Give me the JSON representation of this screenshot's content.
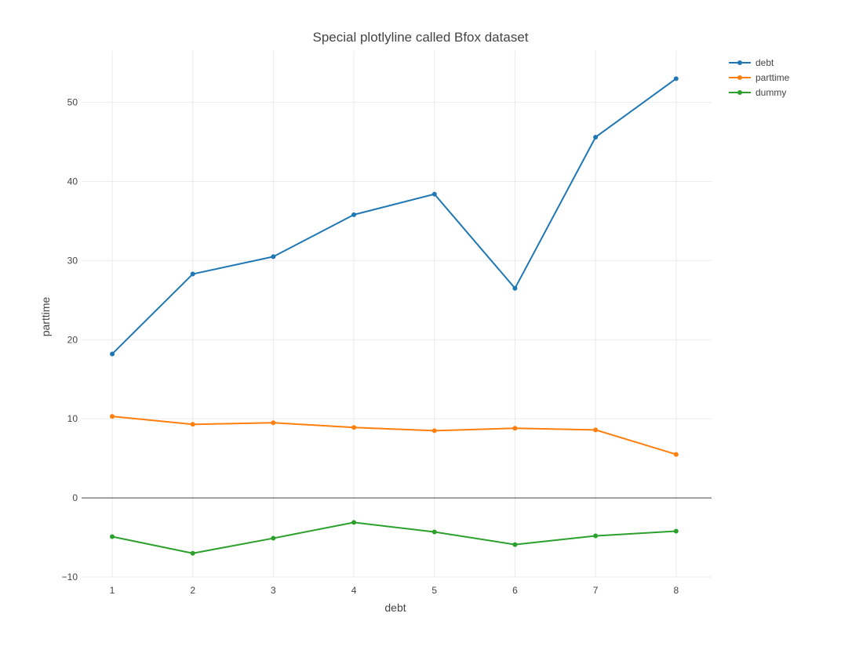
{
  "chart_data": {
    "type": "line",
    "title": "Special plotlyline called Bfox dataset",
    "xlabel": "debt",
    "ylabel": "parttime",
    "x": [
      1,
      2,
      3,
      4,
      5,
      6,
      7,
      8
    ],
    "xlim": [
      0.62,
      8.44
    ],
    "ylim": [
      -10,
      56.5
    ],
    "xticks": [
      "1",
      "2",
      "3",
      "4",
      "5",
      "6",
      "7",
      "8"
    ],
    "yticks": [
      {
        "value": -10,
        "label": "−10"
      },
      {
        "value": 0,
        "label": "0"
      },
      {
        "value": 10,
        "label": "10"
      },
      {
        "value": 20,
        "label": "20"
      },
      {
        "value": 30,
        "label": "30"
      },
      {
        "value": 40,
        "label": "40"
      },
      {
        "value": 50,
        "label": "50"
      }
    ],
    "grid": true,
    "legend_position": "top-right",
    "series": [
      {
        "name": "debt",
        "color": "#1f77b4",
        "values": [
          18.2,
          28.3,
          30.5,
          35.8,
          38.4,
          26.5,
          45.6,
          53.0
        ]
      },
      {
        "name": "parttime",
        "color": "#ff7f0e",
        "values": [
          10.3,
          9.3,
          9.5,
          8.9,
          8.5,
          8.8,
          8.6,
          5.5
        ]
      },
      {
        "name": "dummy",
        "color": "#2ca02c",
        "values": [
          -4.9,
          -7.0,
          -5.1,
          -3.1,
          -4.3,
          -5.9,
          -4.8,
          -4.2
        ]
      }
    ]
  }
}
